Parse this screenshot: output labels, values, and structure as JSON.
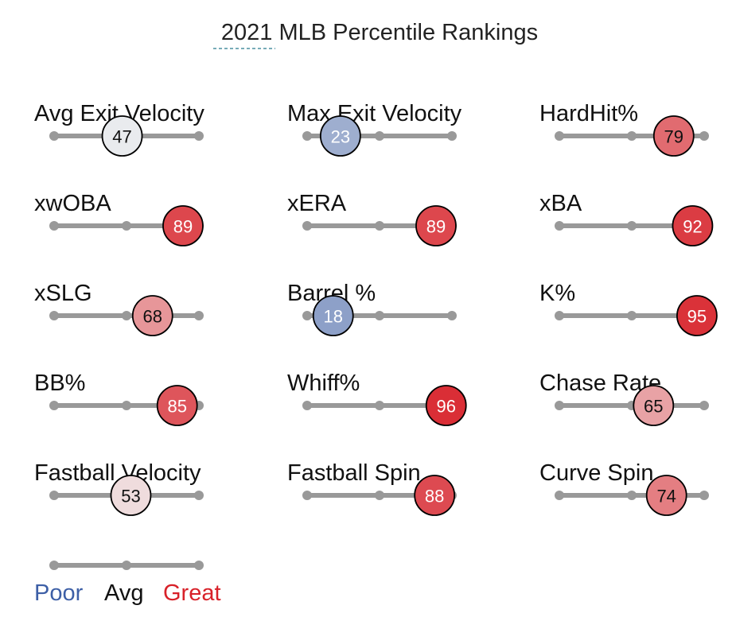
{
  "title": "2021 MLB Percentile Rankings",
  "chart_data": {
    "type": "percentile-sliders",
    "title": "2021 MLB Percentile Rankings",
    "scale": [
      0,
      100
    ],
    "colors": {
      "poor": "#3d5fa6",
      "avg": "#f2f2f2",
      "great": "#d82129",
      "track": "#999999",
      "outline": "#000000"
    },
    "metrics": [
      {
        "label": "Avg Exit Velocity",
        "percentile": 47
      },
      {
        "label": "Max Exit Velocity",
        "percentile": 23
      },
      {
        "label": "HardHit%",
        "percentile": 79
      },
      {
        "label": "xwOBA",
        "percentile": 89
      },
      {
        "label": "xERA",
        "percentile": 89
      },
      {
        "label": "xBA",
        "percentile": 92
      },
      {
        "label": "xSLG",
        "percentile": 68
      },
      {
        "label": "Barrel %",
        "percentile": 18
      },
      {
        "label": "K%",
        "percentile": 95
      },
      {
        "label": "BB%",
        "percentile": 85
      },
      {
        "label": "Whiff%",
        "percentile": 96
      },
      {
        "label": "Chase Rate",
        "percentile": 65
      },
      {
        "label": "Fastball Velocity",
        "percentile": 53
      },
      {
        "label": "Fastball Spin",
        "percentile": 88
      },
      {
        "label": "Curve Spin",
        "percentile": 74
      }
    ],
    "legend": {
      "poor": "Poor",
      "avg": "Avg",
      "great": "Great"
    }
  }
}
